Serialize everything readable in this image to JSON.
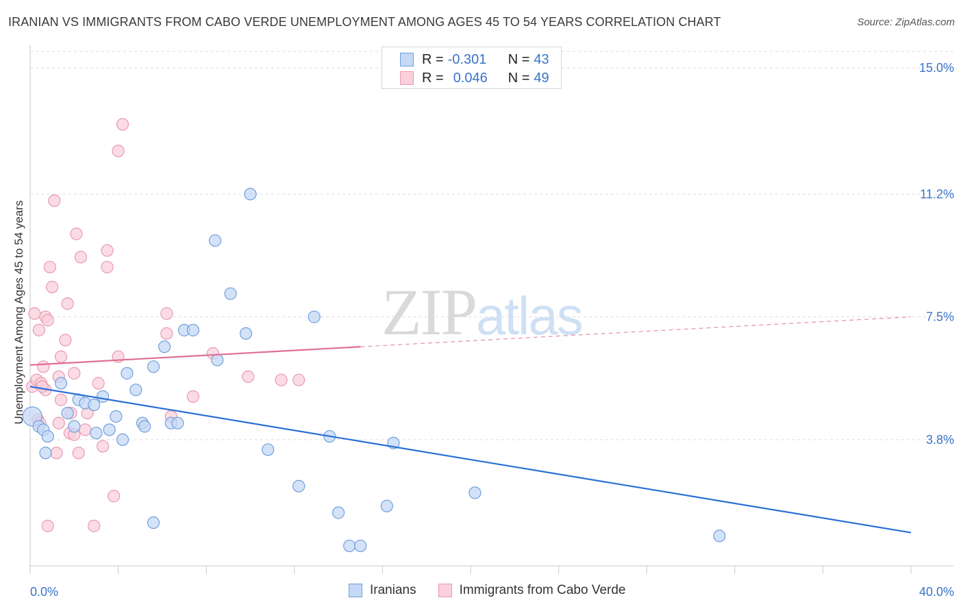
{
  "title": "IRANIAN VS IMMIGRANTS FROM CABO VERDE UNEMPLOYMENT AMONG AGES 45 TO 54 YEARS CORRELATION CHART",
  "source": "Source: ZipAtlas.com",
  "watermark": {
    "zip": "ZIP",
    "atlas": "atlas"
  },
  "legend": {
    "r_label": "R =",
    "n_label": "N =",
    "rows": [
      {
        "r": "-0.301",
        "n": "43"
      },
      {
        "r": "0.046",
        "n": "49"
      }
    ]
  },
  "colors": {
    "blue_fill": "#c5d8f5",
    "blue_stroke": "#6f9fdc",
    "blue_line": "#2a6fd6",
    "pink_fill": "#f9d0dc",
    "pink_stroke": "#e899b0",
    "pink_line": "#e06f92",
    "tick_label": "#3a73c9",
    "grid": "#dddddd"
  },
  "chart_data": {
    "type": "scatter",
    "title": "IRANIAN VS IMMIGRANTS FROM CABO VERDE UNEMPLOYMENT AMONG AGES 45 TO 54 YEARS CORRELATION CHART",
    "xlabel": "",
    "ylabel": "Unemployment Among Ages 45 to 54 years",
    "xlim": [
      0,
      40
    ],
    "ylim": [
      0,
      15.5
    ],
    "x_tick_labels": [
      "0.0%",
      "40.0%"
    ],
    "y_ticks": [
      3.8,
      7.5,
      11.2,
      15.0
    ],
    "y_tick_labels": [
      "3.8%",
      "7.5%",
      "11.2%",
      "15.0%"
    ],
    "grid": "horizontal dashed",
    "legend_position": "top-center",
    "series": [
      {
        "name": "Iranians",
        "r": -0.301,
        "n": 43,
        "trend": {
          "x": [
            0,
            40
          ],
          "y": [
            5.4,
            1.0
          ]
        },
        "points": [
          [
            0.1,
            4.5
          ],
          [
            0.4,
            4.2
          ],
          [
            0.6,
            4.1
          ],
          [
            0.7,
            3.4
          ],
          [
            0.8,
            3.9
          ],
          [
            1.4,
            5.5
          ],
          [
            1.7,
            4.6
          ],
          [
            2.0,
            4.2
          ],
          [
            2.2,
            5.0
          ],
          [
            2.5,
            4.9
          ],
          [
            2.9,
            4.85
          ],
          [
            3.0,
            4.0
          ],
          [
            3.3,
            5.1
          ],
          [
            3.6,
            4.1
          ],
          [
            3.9,
            4.5
          ],
          [
            4.2,
            3.8
          ],
          [
            4.4,
            5.8
          ],
          [
            4.8,
            5.3
          ],
          [
            5.1,
            4.3
          ],
          [
            5.2,
            4.2
          ],
          [
            5.6,
            6.0
          ],
          [
            5.6,
            1.3
          ],
          [
            6.1,
            6.6
          ],
          [
            6.4,
            4.3
          ],
          [
            6.7,
            4.3
          ],
          [
            7.0,
            7.1
          ],
          [
            7.4,
            7.1
          ],
          [
            8.4,
            9.8
          ],
          [
            8.5,
            6.2
          ],
          [
            9.1,
            8.2
          ],
          [
            9.8,
            7.0
          ],
          [
            10.0,
            11.2
          ],
          [
            10.8,
            3.5
          ],
          [
            12.2,
            2.4
          ],
          [
            12.9,
            7.5
          ],
          [
            13.6,
            3.9
          ],
          [
            14.0,
            1.6
          ],
          [
            14.5,
            0.6
          ],
          [
            15.0,
            0.6
          ],
          [
            16.2,
            1.8
          ],
          [
            16.5,
            3.7
          ],
          [
            20.2,
            2.2
          ],
          [
            31.3,
            0.9
          ]
        ]
      },
      {
        "name": "Immigrants from Cabo Verde",
        "r": 0.046,
        "n": 49,
        "trend": {
          "x": [
            0,
            15
          ],
          "y": [
            6.05,
            6.6
          ]
        },
        "trend_dashed": {
          "x": [
            15,
            40
          ],
          "y": [
            6.6,
            7.5
          ]
        },
        "points": [
          [
            0.1,
            5.4
          ],
          [
            0.2,
            7.6
          ],
          [
            0.3,
            5.6
          ],
          [
            0.35,
            4.4
          ],
          [
            0.4,
            7.1
          ],
          [
            0.5,
            5.5
          ],
          [
            0.6,
            6.0
          ],
          [
            0.7,
            7.5
          ],
          [
            0.7,
            5.3
          ],
          [
            0.8,
            1.2
          ],
          [
            0.8,
            7.4
          ],
          [
            0.9,
            9.0
          ],
          [
            1.0,
            8.4
          ],
          [
            1.1,
            11.0
          ],
          [
            1.2,
            3.4
          ],
          [
            1.3,
            5.7
          ],
          [
            1.3,
            4.3
          ],
          [
            1.4,
            5.0
          ],
          [
            1.4,
            6.3
          ],
          [
            1.6,
            6.8
          ],
          [
            1.7,
            7.9
          ],
          [
            1.8,
            4.0
          ],
          [
            2.0,
            3.95
          ],
          [
            2.0,
            5.8
          ],
          [
            2.1,
            10.0
          ],
          [
            2.2,
            3.4
          ],
          [
            2.3,
            9.3
          ],
          [
            2.5,
            4.1
          ],
          [
            2.6,
            4.6
          ],
          [
            2.9,
            1.2
          ],
          [
            3.1,
            5.5
          ],
          [
            3.3,
            3.6
          ],
          [
            3.5,
            9.5
          ],
          [
            3.5,
            9.0
          ],
          [
            3.8,
            2.1
          ],
          [
            4.0,
            6.3
          ],
          [
            4.0,
            12.5
          ],
          [
            4.2,
            13.3
          ],
          [
            6.2,
            7.0
          ],
          [
            6.2,
            7.6
          ],
          [
            6.4,
            4.5
          ],
          [
            7.4,
            5.1
          ],
          [
            8.3,
            6.4
          ],
          [
            9.9,
            5.7
          ],
          [
            11.4,
            5.6
          ],
          [
            12.2,
            5.6
          ],
          [
            0.45,
            4.3
          ],
          [
            0.55,
            5.4
          ],
          [
            1.85,
            4.6
          ]
        ]
      }
    ]
  }
}
